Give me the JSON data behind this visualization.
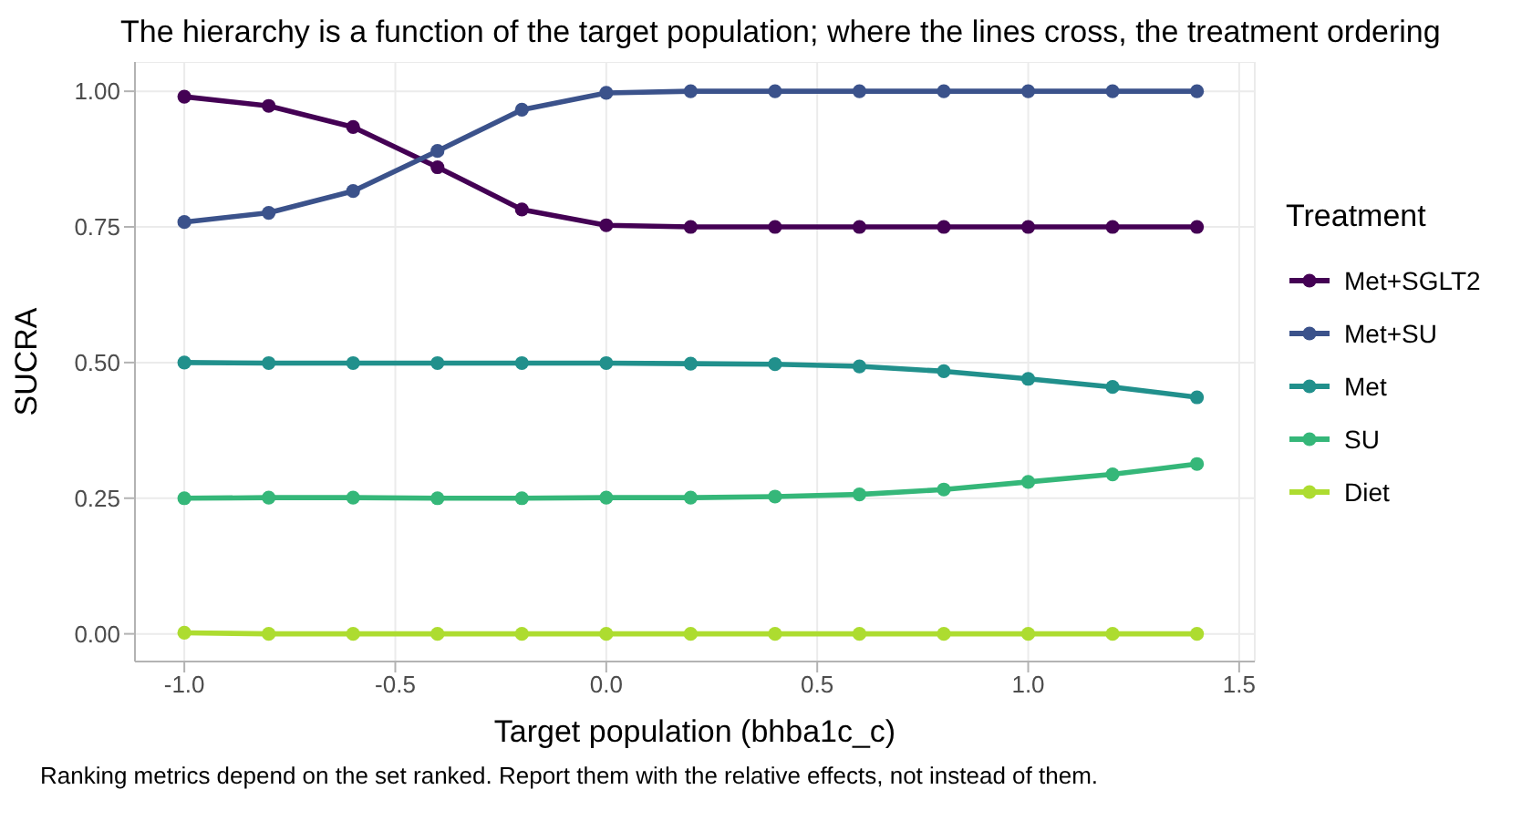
{
  "chart_data": {
    "type": "line",
    "title": "The hierarchy is a function of the target population; where the lines cross, the treatment ordering",
    "xlabel": "Target population (bhba1c_c)",
    "ylabel": "SUCRA",
    "legend_title": "Treatment",
    "annotations": [
      "Ranking metrics depend on the set ranked. Report them with the relative effects, not instead of them."
    ],
    "x": [
      -1.0,
      -0.8,
      -0.6,
      -0.4,
      -0.2,
      0.0,
      0.2,
      0.4,
      0.6,
      0.8,
      1.0,
      1.2,
      1.4
    ],
    "series": [
      {
        "name": "Met+SGLT2",
        "color": "#440154",
        "values": [
          0.99,
          0.973,
          0.934,
          0.86,
          0.782,
          0.753,
          0.75,
          0.75,
          0.75,
          0.75,
          0.75,
          0.75,
          0.75
        ]
      },
      {
        "name": "Met+SU",
        "color": "#3b528b",
        "values": [
          0.759,
          0.776,
          0.816,
          0.89,
          0.966,
          0.997,
          1.0,
          1.0,
          1.0,
          1.0,
          1.0,
          1.0,
          1.0
        ]
      },
      {
        "name": "Met",
        "color": "#21908c",
        "values": [
          0.5,
          0.499,
          0.499,
          0.499,
          0.499,
          0.499,
          0.498,
          0.497,
          0.493,
          0.484,
          0.47,
          0.455,
          0.436
        ]
      },
      {
        "name": "SU",
        "color": "#35b779",
        "values": [
          0.25,
          0.251,
          0.251,
          0.25,
          0.25,
          0.251,
          0.251,
          0.253,
          0.257,
          0.266,
          0.28,
          0.294,
          0.313
        ]
      },
      {
        "name": "Diet",
        "color": "#addc30",
        "values": [
          0.002,
          0,
          0,
          0,
          0,
          0,
          0,
          0,
          0,
          0,
          0,
          0,
          0
        ]
      }
    ],
    "xlim": [
      -1.117,
      1.537
    ],
    "xticks": [
      {
        "value": -1.0,
        "label": "-1.0"
      },
      {
        "value": -0.5,
        "label": "-0.5"
      },
      {
        "value": 0.0,
        "label": "0.0"
      },
      {
        "value": 0.5,
        "label": "0.5"
      },
      {
        "value": 1.0,
        "label": "1.0"
      },
      {
        "value": 1.5,
        "label": "1.5"
      }
    ],
    "ylim": [
      -0.051,
      1.054
    ],
    "yticks": [
      {
        "value": 0,
        "label": "0.00"
      },
      {
        "value": 0.25,
        "label": "0.25"
      },
      {
        "value": 0.5,
        "label": "0.50"
      },
      {
        "value": 0.75,
        "label": "0.75"
      },
      {
        "value": 1.0,
        "label": "1.00"
      }
    ],
    "grid": true,
    "legend": "right",
    "marker": "circle",
    "line_style": "solid"
  }
}
